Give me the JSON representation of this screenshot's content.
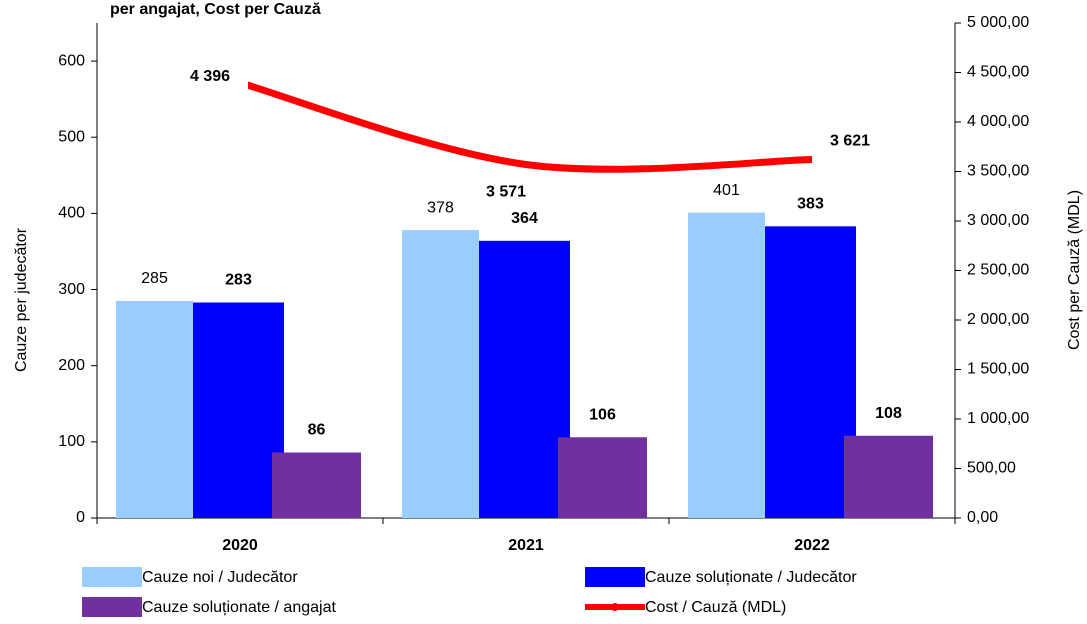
{
  "chart_data": {
    "type": "bar",
    "title": "per angajat,  Cost per Cauză",
    "categories": [
      "2020",
      "2021",
      "2022"
    ],
    "ylabel": "Cauze per judecător",
    "y2label": "Cost per Cauză (MDL)",
    "ylim": [
      0,
      650
    ],
    "yticks": [
      0,
      100,
      200,
      300,
      400,
      500,
      600
    ],
    "y2lim": [
      0,
      5000
    ],
    "y2ticks": [
      {
        "value": 0,
        "label": "0,00"
      },
      {
        "value": 500,
        "label": "500,00"
      },
      {
        "value": 1000,
        "label": "1 000,00"
      },
      {
        "value": 1500,
        "label": "1 500,00"
      },
      {
        "value": 2000,
        "label": "2 000,00"
      },
      {
        "value": 2500,
        "label": "2 500,00"
      },
      {
        "value": 3000,
        "label": "3 000,00"
      },
      {
        "value": 3500,
        "label": "3 500,00"
      },
      {
        "value": 4000,
        "label": "4 000,00"
      },
      {
        "value": 4500,
        "label": "4 500,00"
      },
      {
        "value": 5000,
        "label": "5 000,00"
      }
    ],
    "series": [
      {
        "name": "Cauze noi / Judecător",
        "color": "#99ccff",
        "values": [
          285,
          378,
          401
        ]
      },
      {
        "name": "Cauze soluționate / Judecător",
        "color": "#0000ff",
        "values": [
          283,
          364,
          383
        ]
      },
      {
        "name": "Cauze soluționate / angajat",
        "color": "#7030a0",
        "values": [
          86,
          106,
          108
        ]
      },
      {
        "name": "Cost / Cauză (MDL)",
        "color": "#ff0000",
        "type": "line",
        "axis": "y2",
        "values": [
          4396,
          3571,
          3621
        ],
        "value_labels": [
          "4 396",
          "3 571",
          "3 621"
        ]
      }
    ]
  }
}
